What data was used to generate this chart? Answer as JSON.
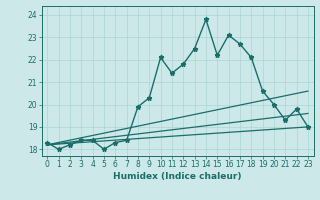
{
  "xlabel": "Humidex (Indice chaleur)",
  "bg_color": "#cce8e8",
  "line_color": "#1a6e6a",
  "xlim": [
    -0.5,
    23.5
  ],
  "ylim": [
    17.7,
    24.4
  ],
  "yticks": [
    18,
    19,
    20,
    21,
    22,
    23,
    24
  ],
  "xticks": [
    0,
    1,
    2,
    3,
    4,
    5,
    6,
    7,
    8,
    9,
    10,
    11,
    12,
    13,
    14,
    15,
    16,
    17,
    18,
    19,
    20,
    21,
    22,
    23
  ],
  "lines": [
    {
      "x": [
        0,
        1,
        2,
        3,
        4,
        5,
        6,
        7,
        8,
        9,
        10,
        11,
        12,
        13,
        14,
        15,
        16,
        17,
        18,
        19,
        20,
        21,
        22,
        23
      ],
      "y": [
        18.3,
        18.0,
        18.2,
        18.4,
        18.4,
        18.0,
        18.3,
        18.4,
        19.9,
        20.3,
        22.1,
        21.4,
        21.8,
        22.5,
        23.8,
        22.2,
        23.1,
        22.7,
        22.1,
        20.6,
        20.0,
        19.3,
        19.8,
        19.0
      ],
      "marker": "*",
      "markersize": 3.5,
      "linewidth": 1.0
    },
    {
      "x": [
        0,
        23
      ],
      "y": [
        18.2,
        20.6
      ],
      "marker": "None",
      "markersize": 0,
      "linewidth": 0.9
    },
    {
      "x": [
        0,
        23
      ],
      "y": [
        18.2,
        19.6
      ],
      "marker": "None",
      "markersize": 0,
      "linewidth": 0.9
    },
    {
      "x": [
        0,
        23
      ],
      "y": [
        18.2,
        19.0
      ],
      "marker": "None",
      "markersize": 0,
      "linewidth": 0.9
    }
  ],
  "grid_color": "#aad4d4",
  "tick_fontsize": 5.5,
  "xlabel_fontsize": 6.5
}
